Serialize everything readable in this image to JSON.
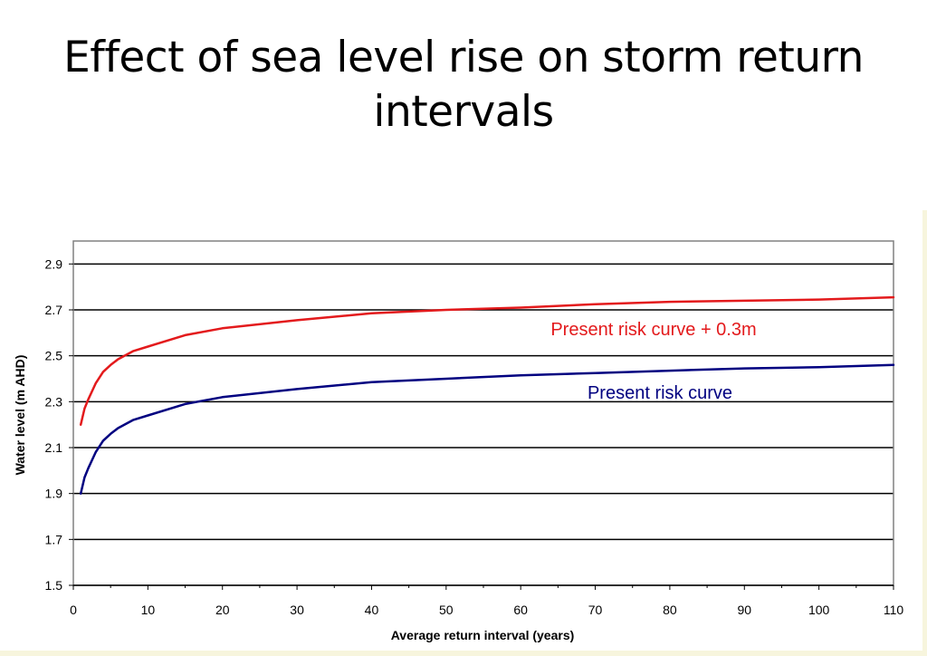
{
  "slide": {
    "title": "Effect of sea level rise on storm return intervals"
  },
  "colors": {
    "raised": "#e31a1c",
    "present": "#000080",
    "grid": "#000000",
    "background": "#ffffff"
  },
  "chart_data": {
    "type": "line",
    "title": "",
    "xlabel": "Average return interval (years)",
    "ylabel": "Water level (m AHD)",
    "xlim": [
      0,
      110
    ],
    "ylim": [
      1.5,
      3.0
    ],
    "xticks": [
      0,
      10,
      20,
      30,
      40,
      50,
      60,
      70,
      80,
      90,
      100,
      110
    ],
    "yticks": [
      1.5,
      1.7,
      1.9,
      2.1,
      2.3,
      2.5,
      2.7,
      2.9
    ],
    "ytick_labels": [
      "1.5",
      "1.7",
      "1.9",
      "2.1",
      "2.3",
      "2.5",
      "2.7",
      "2.9"
    ],
    "grid": "horizontal",
    "legend": "none",
    "series": [
      {
        "name": "Present risk curve + 0.3m",
        "color": "#e31a1c",
        "x": [
          1,
          1.5,
          2,
          3,
          4,
          5,
          6,
          8,
          10,
          15,
          20,
          30,
          40,
          50,
          60,
          70,
          80,
          90,
          100,
          110
        ],
        "y": [
          2.2,
          2.27,
          2.31,
          2.38,
          2.43,
          2.46,
          2.485,
          2.52,
          2.54,
          2.59,
          2.62,
          2.655,
          2.685,
          2.7,
          2.71,
          2.725,
          2.735,
          2.74,
          2.745,
          2.755
        ]
      },
      {
        "name": "Present risk curve",
        "color": "#000080",
        "x": [
          1,
          1.5,
          2,
          3,
          4,
          5,
          6,
          8,
          10,
          15,
          20,
          30,
          40,
          50,
          60,
          70,
          80,
          90,
          100,
          110
        ],
        "y": [
          1.9,
          1.97,
          2.01,
          2.08,
          2.13,
          2.16,
          2.185,
          2.22,
          2.24,
          2.29,
          2.32,
          2.355,
          2.385,
          2.4,
          2.415,
          2.425,
          2.435,
          2.445,
          2.45,
          2.46
        ]
      }
    ]
  }
}
